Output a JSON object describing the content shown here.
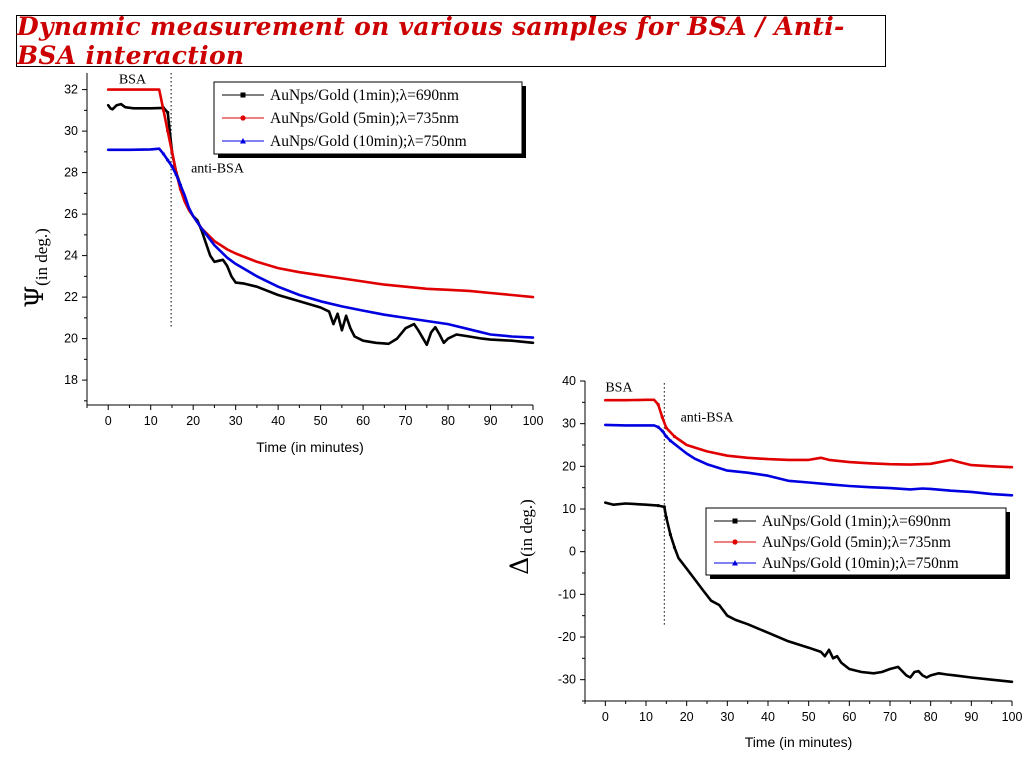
{
  "title": "Dynamic measurement on various samples for BSA / Anti-BSA interaction",
  "colors": {
    "title": "#cc0000",
    "black": "#000000",
    "red": "#e00000",
    "blue": "#0000e0"
  },
  "chart_data": [
    {
      "id": "psi",
      "type": "line",
      "xlabel": "Time (in minutes)",
      "ylabel_symbol": "Ψ",
      "ylabel_sub": "(in deg.)",
      "xlim": [
        -5,
        100
      ],
      "ylim": [
        16.8,
        32.8
      ],
      "xticks": [
        0,
        10,
        20,
        30,
        40,
        50,
        60,
        70,
        80,
        90,
        100
      ],
      "yticks": [
        18,
        20,
        22,
        24,
        26,
        28,
        30,
        32
      ],
      "injection_x": 14.8,
      "annotations": [
        {
          "text": "BSA",
          "x": 2.5,
          "y": 32.3
        },
        {
          "text": "anti-BSA",
          "x": 19.5,
          "y": 28.0
        }
      ],
      "legend_position": "top-right",
      "series": [
        {
          "name": "AuNps/Gold (1min);λ=690nm",
          "color": "black",
          "marker": "square",
          "points": [
            [
              0,
              31.25
            ],
            [
              0.5,
              31.1
            ],
            [
              1,
              31.05
            ],
            [
              2,
              31.25
            ],
            [
              3,
              31.3
            ],
            [
              4,
              31.15
            ],
            [
              6,
              31.1
            ],
            [
              10,
              31.1
            ],
            [
              13,
              31.12
            ],
            [
              14,
              30.9
            ],
            [
              15,
              29.0
            ],
            [
              16,
              28.0
            ],
            [
              17,
              27.4
            ],
            [
              18,
              26.8
            ],
            [
              19,
              26.2
            ],
            [
              20,
              25.9
            ],
            [
              21,
              25.7
            ],
            [
              22,
              25.2
            ],
            [
              23,
              24.6
            ],
            [
              24,
              24.0
            ],
            [
              25,
              23.7
            ],
            [
              26,
              23.75
            ],
            [
              27,
              23.8
            ],
            [
              28,
              23.5
            ],
            [
              29,
              23.0
            ],
            [
              30,
              22.7
            ],
            [
              32,
              22.65
            ],
            [
              35,
              22.5
            ],
            [
              40,
              22.1
            ],
            [
              45,
              21.8
            ],
            [
              50,
              21.5
            ],
            [
              52,
              21.3
            ],
            [
              53,
              20.7
            ],
            [
              54,
              21.2
            ],
            [
              55,
              20.4
            ],
            [
              56,
              21.1
            ],
            [
              57,
              20.5
            ],
            [
              58,
              20.1
            ],
            [
              60,
              19.9
            ],
            [
              63,
              19.8
            ],
            [
              66,
              19.75
            ],
            [
              68,
              20.0
            ],
            [
              70,
              20.5
            ],
            [
              72,
              20.7
            ],
            [
              73,
              20.4
            ],
            [
              75,
              19.7
            ],
            [
              76,
              20.3
            ],
            [
              77,
              20.55
            ],
            [
              78,
              20.2
            ],
            [
              79,
              19.8
            ],
            [
              80,
              20.0
            ],
            [
              82,
              20.2
            ],
            [
              85,
              20.1
            ],
            [
              88,
              20.0
            ],
            [
              90,
              19.95
            ],
            [
              95,
              19.9
            ],
            [
              100,
              19.8
            ]
          ]
        },
        {
          "name": "AuNps/Gold (5min);λ=735nm",
          "color": "red",
          "marker": "circle",
          "points": [
            [
              0,
              32.0
            ],
            [
              5,
              32.0
            ],
            [
              10,
              32.0
            ],
            [
              12,
              32.0
            ],
            [
              13,
              31.0
            ],
            [
              14,
              30.0
            ],
            [
              15,
              29.0
            ],
            [
              16,
              28.0
            ],
            [
              17,
              27.2
            ],
            [
              18,
              26.6
            ],
            [
              19,
              26.2
            ],
            [
              20,
              25.9
            ],
            [
              22,
              25.3
            ],
            [
              25,
              24.7
            ],
            [
              28,
              24.3
            ],
            [
              30,
              24.1
            ],
            [
              35,
              23.7
            ],
            [
              40,
              23.4
            ],
            [
              45,
              23.2
            ],
            [
              50,
              23.05
            ],
            [
              55,
              22.9
            ],
            [
              60,
              22.75
            ],
            [
              65,
              22.6
            ],
            [
              70,
              22.5
            ],
            [
              75,
              22.4
            ],
            [
              80,
              22.35
            ],
            [
              85,
              22.3
            ],
            [
              90,
              22.2
            ],
            [
              95,
              22.1
            ],
            [
              100,
              22.0
            ]
          ]
        },
        {
          "name": "AuNps/Gold (10min);λ=750nm",
          "color": "blue",
          "marker": "triangle",
          "points": [
            [
              0,
              29.1
            ],
            [
              5,
              29.1
            ],
            [
              10,
              29.12
            ],
            [
              12,
              29.15
            ],
            [
              13,
              28.9
            ],
            [
              14,
              28.6
            ],
            [
              15,
              28.3
            ],
            [
              16,
              27.9
            ],
            [
              17,
              27.4
            ],
            [
              18,
              26.9
            ],
            [
              19,
              26.3
            ],
            [
              20,
              25.9
            ],
            [
              22,
              25.3
            ],
            [
              25,
              24.5
            ],
            [
              28,
              23.9
            ],
            [
              30,
              23.6
            ],
            [
              35,
              23.0
            ],
            [
              40,
              22.5
            ],
            [
              45,
              22.1
            ],
            [
              50,
              21.8
            ],
            [
              55,
              21.55
            ],
            [
              60,
              21.35
            ],
            [
              65,
              21.15
            ],
            [
              70,
              21.0
            ],
            [
              75,
              20.85
            ],
            [
              80,
              20.7
            ],
            [
              85,
              20.45
            ],
            [
              90,
              20.2
            ],
            [
              95,
              20.1
            ],
            [
              100,
              20.05
            ]
          ]
        }
      ]
    },
    {
      "id": "delta",
      "type": "line",
      "xlabel": "Time (in minutes)",
      "ylabel_symbol": "Δ",
      "ylabel_sub": "(in deg.)",
      "xlim": [
        -5,
        100
      ],
      "ylim": [
        -35,
        40
      ],
      "xticks": [
        0,
        10,
        20,
        30,
        40,
        50,
        60,
        70,
        80,
        90,
        100
      ],
      "yticks": [
        -30,
        -20,
        -10,
        0,
        10,
        20,
        30,
        40
      ],
      "injection_x": 14.5,
      "annotations": [
        {
          "text": "BSA",
          "x": 0,
          "y": 37.5
        },
        {
          "text": "anti-BSA",
          "x": 18.5,
          "y": 30.5
        }
      ],
      "legend_position": "middle-right",
      "series": [
        {
          "name": "AuNps/Gold (1min);λ=690nm",
          "color": "black",
          "marker": "square",
          "points": [
            [
              0,
              11.5
            ],
            [
              2,
              11.0
            ],
            [
              5,
              11.3
            ],
            [
              10,
              11.0
            ],
            [
              13,
              10.8
            ],
            [
              14.5,
              10.5
            ],
            [
              15,
              8.0
            ],
            [
              16,
              4.0
            ],
            [
              17,
              1.0
            ],
            [
              18,
              -1.5
            ],
            [
              20,
              -4.0
            ],
            [
              22,
              -6.5
            ],
            [
              24,
              -9.0
            ],
            [
              26,
              -11.5
            ],
            [
              28,
              -12.5
            ],
            [
              30,
              -15.0
            ],
            [
              32,
              -16.0
            ],
            [
              35,
              -17.0
            ],
            [
              40,
              -19.0
            ],
            [
              45,
              -21.0
            ],
            [
              50,
              -22.5
            ],
            [
              53,
              -23.5
            ],
            [
              54,
              -24.5
            ],
            [
              55,
              -23.0
            ],
            [
              56,
              -25.0
            ],
            [
              57,
              -24.5
            ],
            [
              58,
              -26.0
            ],
            [
              60,
              -27.5
            ],
            [
              63,
              -28.2
            ],
            [
              66,
              -28.5
            ],
            [
              68,
              -28.2
            ],
            [
              70,
              -27.5
            ],
            [
              72,
              -27.0
            ],
            [
              74,
              -29.0
            ],
            [
              75,
              -29.5
            ],
            [
              76,
              -28.2
            ],
            [
              77,
              -28.0
            ],
            [
              78,
              -29.0
            ],
            [
              79,
              -29.5
            ],
            [
              80,
              -29.0
            ],
            [
              82,
              -28.5
            ],
            [
              84,
              -28.8
            ],
            [
              86,
              -29.0
            ],
            [
              90,
              -29.5
            ],
            [
              95,
              -30.0
            ],
            [
              100,
              -30.5
            ]
          ]
        },
        {
          "name": "AuNps/Gold (5min);λ=735nm",
          "color": "red",
          "marker": "circle",
          "points": [
            [
              0,
              35.5
            ],
            [
              5,
              35.5
            ],
            [
              10,
              35.6
            ],
            [
              12,
              35.6
            ],
            [
              13,
              34.5
            ],
            [
              14,
              31.5
            ],
            [
              15,
              29.0
            ],
            [
              17,
              27.0
            ],
            [
              20,
              25.0
            ],
            [
              25,
              23.5
            ],
            [
              30,
              22.5
            ],
            [
              35,
              22.0
            ],
            [
              40,
              21.7
            ],
            [
              45,
              21.5
            ],
            [
              50,
              21.5
            ],
            [
              53,
              22.0
            ],
            [
              55,
              21.5
            ],
            [
              60,
              21.0
            ],
            [
              65,
              20.7
            ],
            [
              70,
              20.5
            ],
            [
              75,
              20.4
            ],
            [
              80,
              20.6
            ],
            [
              85,
              21.5
            ],
            [
              87,
              21.0
            ],
            [
              90,
              20.3
            ],
            [
              95,
              20.0
            ],
            [
              100,
              19.8
            ]
          ]
        },
        {
          "name": "AuNps/Gold (10min);λ=750nm",
          "color": "blue",
          "marker": "triangle",
          "points": [
            [
              0,
              29.7
            ],
            [
              5,
              29.6
            ],
            [
              10,
              29.6
            ],
            [
              12,
              29.6
            ],
            [
              13,
              29.2
            ],
            [
              14,
              28.3
            ],
            [
              15,
              27.0
            ],
            [
              16,
              26.0
            ],
            [
              18,
              24.5
            ],
            [
              20,
              23.0
            ],
            [
              22,
              21.8
            ],
            [
              25,
              20.5
            ],
            [
              30,
              19.0
            ],
            [
              35,
              18.5
            ],
            [
              40,
              17.8
            ],
            [
              45,
              16.6
            ],
            [
              50,
              16.2
            ],
            [
              55,
              15.8
            ],
            [
              60,
              15.4
            ],
            [
              65,
              15.1
            ],
            [
              70,
              14.9
            ],
            [
              75,
              14.6
            ],
            [
              78,
              14.8
            ],
            [
              80,
              14.7
            ],
            [
              85,
              14.3
            ],
            [
              90,
              14.0
            ],
            [
              95,
              13.5
            ],
            [
              100,
              13.2
            ]
          ]
        }
      ]
    }
  ]
}
